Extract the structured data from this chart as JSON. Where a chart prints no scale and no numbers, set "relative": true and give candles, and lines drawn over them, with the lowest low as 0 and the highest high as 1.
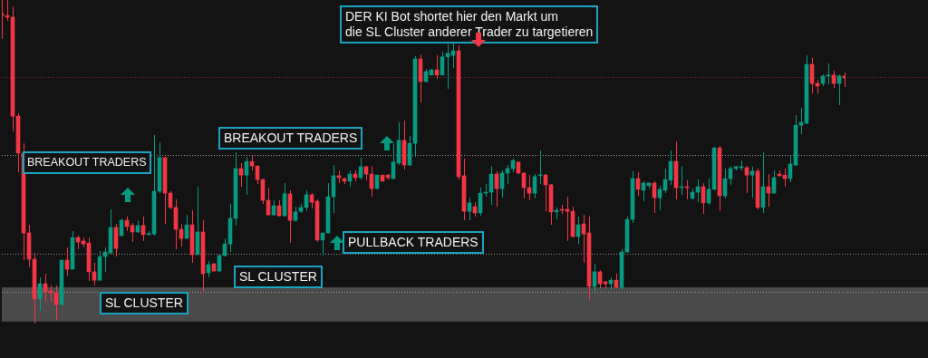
{
  "chart_data": {
    "type": "candlestick",
    "relative": true,
    "colors": [
      "#f23645",
      "#f23645",
      "#f23645",
      "#f23645",
      "#f23645",
      "#f23645",
      "#f23645",
      "#089981",
      "#f23645",
      "#f23645",
      "#f23645",
      "#089981",
      "#f23645",
      "#089981",
      "#f23645",
      "#f23645",
      "#f23645",
      "#f23645",
      "#089981",
      "#089981",
      "#089981",
      "#f23645",
      "#089981",
      "#f23645",
      "#f23645",
      "#089981",
      "#f23645",
      "#089981",
      "#089981",
      "#089981",
      "#f23645",
      "#f23645",
      "#f23645",
      "#f23645",
      "#089981",
      "#f23645",
      "#089981",
      "#f23645",
      "#089981",
      "#f23645",
      "#089981",
      "#089981",
      "#089981",
      "#089981",
      "#f23645",
      "#089981",
      "#f23645",
      "#f23645",
      "#f23645",
      "#f23645",
      "#089981",
      "#f23645",
      "#089981",
      "#f23645",
      "#089981",
      "#089981",
      "#089981",
      "#f23645",
      "#f23645",
      "#089981",
      "#089981",
      "#089981",
      "#f23645",
      "#f23645",
      "#089981",
      "#f23645",
      "#089981",
      "#f23645",
      "#f23645",
      "#089981",
      "#f23645",
      "#f23645",
      "#089981",
      "#089981",
      "#f23645",
      "#089981",
      "#089981",
      "#f23645",
      "#089981",
      "#089981",
      "#f23645",
      "#089981",
      "#089981",
      "#089981",
      "#f23645",
      "#f23645",
      "#089981",
      "#f23645",
      "#089981",
      "#089981",
      "#089981",
      "#f23645",
      "#089981",
      "#089981",
      "#089981",
      "#f23645",
      "#f23645",
      "#f23645",
      "#089981",
      "#089981",
      "#f23645",
      "#f23645",
      "#089981",
      "#f23645",
      "#f23645",
      "#f23645",
      "#089981",
      "#f23645",
      "#f23645",
      "#089981",
      "#f23645",
      "#f23645",
      "#089981",
      "#f23645",
      "#089981",
      "#089981",
      "#089981",
      "#f23645",
      "#089981",
      "#089981",
      "#f23645",
      "#089981",
      "#089981",
      "#089981",
      "#f23645",
      "#089981",
      "#f23645",
      "#089981",
      "#089981",
      "#f23645",
      "#089981",
      "#089981",
      "#f23645",
      "#089981",
      "#089981",
      "#089981",
      "#089981",
      "#f23645",
      "#089981",
      "#f23645",
      "#089981",
      "#f23645",
      "#089981",
      "#f23645",
      "#f23645",
      "#089981",
      "#089981",
      "#089981",
      "#089981",
      "#f23645",
      "#f23645",
      "#089981",
      "#089981",
      "#f23645",
      "#089981",
      "#f23645"
    ],
    "categories": [
      null,
      null,
      null,
      null,
      null,
      null,
      null,
      null,
      null,
      null,
      null,
      null,
      null,
      null,
      null,
      null,
      null,
      null,
      null,
      null,
      null,
      null,
      null,
      null,
      null,
      null,
      null,
      null,
      null,
      null,
      null,
      null,
      null,
      null,
      null,
      null,
      null,
      null,
      null,
      null,
      null,
      null,
      null,
      null,
      null,
      null,
      null,
      null,
      null,
      null,
      null,
      null,
      null,
      null,
      null,
      null,
      null,
      null,
      null,
      null,
      null,
      null,
      null,
      null,
      null,
      null,
      null,
      null,
      null,
      null,
      null,
      null,
      null,
      null,
      null,
      null,
      null,
      null,
      null,
      null,
      null,
      null,
      null,
      null,
      null,
      null,
      null,
      null,
      null,
      null,
      null,
      null,
      null,
      null,
      null,
      null,
      null,
      null,
      null,
      null,
      null,
      null,
      null,
      null,
      null,
      null,
      null,
      null,
      null,
      null,
      null,
      null,
      null,
      null,
      null,
      null,
      null,
      null,
      null,
      null,
      null,
      null,
      null,
      null,
      null,
      null,
      null,
      null,
      null,
      null,
      null,
      null,
      null,
      null,
      null,
      null,
      null,
      null,
      null,
      null,
      null,
      null,
      null,
      null,
      null,
      null,
      null,
      null,
      null,
      null,
      null,
      null,
      null,
      null,
      null,
      null
    ],
    "ohlc": [
      [
        0.958,
        1,
        0.88,
        0.952
      ],
      [
        0.952,
        1,
        0.936,
        0.947
      ],
      [
        0.947,
        0.98,
        0.594,
        0.641
      ],
      [
        0.641,
        0.65,
        0.468,
        0.527
      ],
      [
        0.527,
        0.557,
        0.196,
        0.28
      ],
      [
        0.28,
        0.305,
        0.174,
        0.199
      ],
      [
        0.199,
        0.218,
        0,
        0.076
      ],
      [
        0.076,
        0.143,
        0.039,
        0.123
      ],
      [
        0.123,
        0.154,
        0.067,
        0.098
      ],
      [
        0.101,
        0.118,
        0.067,
        0.095
      ],
      [
        0.095,
        0.118,
        0.011,
        0.059
      ],
      [
        0.059,
        0.196,
        0.056,
        0.196
      ],
      [
        0.196,
        0.235,
        0.148,
        0.168
      ],
      [
        0.168,
        0.286,
        0.168,
        0.266
      ],
      [
        0.266,
        0.272,
        0.23,
        0.252
      ],
      [
        0.255,
        0.266,
        0.235,
        0.246
      ],
      [
        0.249,
        0.266,
        0.132,
        0.16
      ],
      [
        0.16,
        0.188,
        0.118,
        0.134
      ],
      [
        0.134,
        0.224,
        0.134,
        0.207
      ],
      [
        0.207,
        0.235,
        0.16,
        0.221
      ],
      [
        0.218,
        0.353,
        0.218,
        0.297
      ],
      [
        0.297,
        0.308,
        0.207,
        0.232
      ],
      [
        0.272,
        0.325,
        0.269,
        0.319
      ],
      [
        0.319,
        0.331,
        0.286,
        0.3
      ],
      [
        0.303,
        0.311,
        0.252,
        0.283
      ],
      [
        0.283,
        0.319,
        0.28,
        0.303
      ],
      [
        0.303,
        0.331,
        0.255,
        0.275
      ],
      [
        0.275,
        0.286,
        0.272,
        0.277
      ],
      [
        0.277,
        0.583,
        0.272,
        0.409
      ],
      [
        0.409,
        0.56,
        0.403,
        0.513
      ],
      [
        0.513,
        0.513,
        0.308,
        0.403
      ],
      [
        0.403,
        0.409,
        0.353,
        0.359
      ],
      [
        0.359,
        0.384,
        0.23,
        0.291
      ],
      [
        0.291,
        0.308,
        0.238,
        0.263
      ],
      [
        0.263,
        0.336,
        0.263,
        0.305
      ],
      [
        0.305,
        0.35,
        0.188,
        0.213
      ],
      [
        0.213,
        0.423,
        0.213,
        0.283
      ],
      [
        0.283,
        0.319,
        0.095,
        0.154
      ],
      [
        0.157,
        0.193,
        0.143,
        0.182
      ],
      [
        0.185,
        0.185,
        0.162,
        0.162
      ],
      [
        0.162,
        0.216,
        0.162,
        0.21
      ],
      [
        0.21,
        0.263,
        0.207,
        0.246
      ],
      [
        0.246,
        0.37,
        0.221,
        0.325
      ],
      [
        0.325,
        0.529,
        0.303,
        0.479
      ],
      [
        0.479,
        0.496,
        0.423,
        0.459
      ],
      [
        0.459,
        0.515,
        0.398,
        0.501
      ],
      [
        0.501,
        0.518,
        0.473,
        0.487
      ],
      [
        0.487,
        0.487,
        0.431,
        0.445
      ],
      [
        0.445,
        0.448,
        0.37,
        0.381
      ],
      [
        0.381,
        0.42,
        0.336,
        0.336
      ],
      [
        0.336,
        0.381,
        0.333,
        0.364
      ],
      [
        0.364,
        0.381,
        0.331,
        0.333
      ],
      [
        0.333,
        0.434,
        0.331,
        0.401
      ],
      [
        0.401,
        0.412,
        0.249,
        0.319
      ],
      [
        0.319,
        0.361,
        0.314,
        0.345
      ],
      [
        0.347,
        0.37,
        0.342,
        0.359
      ],
      [
        0.359,
        0.412,
        0.347,
        0.398
      ],
      [
        0.398,
        0.403,
        0.356,
        0.375
      ],
      [
        0.378,
        0.384,
        0.252,
        0.258
      ],
      [
        0.258,
        0.28,
        0.21,
        0.28
      ],
      [
        0.28,
        0.434,
        0.28,
        0.392
      ],
      [
        0.392,
        0.49,
        0.342,
        0.457
      ],
      [
        0.457,
        0.473,
        0.434,
        0.451
      ],
      [
        0.448,
        0.451,
        0.431,
        0.44
      ],
      [
        0.44,
        0.473,
        0.423,
        0.462
      ],
      [
        0.462,
        0.473,
        0.44,
        0.451
      ],
      [
        0.451,
        0.513,
        0.445,
        0.485
      ],
      [
        0.485,
        0.487,
        0.443,
        0.462
      ],
      [
        0.462,
        0.487,
        0.392,
        0.417
      ],
      [
        0.417,
        0.459,
        0.415,
        0.459
      ],
      [
        0.459,
        0.459,
        0.44,
        0.44
      ],
      [
        0.459,
        0.462,
        0.445,
        0.451
      ],
      [
        0.448,
        0.555,
        0.448,
        0.499
      ],
      [
        0.496,
        0.622,
        0.49,
        0.566
      ],
      [
        0.566,
        0.627,
        0.476,
        0.49
      ],
      [
        0.49,
        0.58,
        0.487,
        0.557
      ],
      [
        0.557,
        0.826,
        0.515,
        0.818
      ],
      [
        0.818,
        0.832,
        0.683,
        0.748
      ],
      [
        0.748,
        0.787,
        0.745,
        0.779
      ],
      [
        0.768,
        0.787,
        0.768,
        0.784
      ],
      [
        0.784,
        0.829,
        0.756,
        0.768
      ],
      [
        0.768,
        0.84,
        0.768,
        0.824
      ],
      [
        0.824,
        0.863,
        0.725,
        0.835
      ],
      [
        0.829,
        0.868,
        0.79,
        0.843
      ],
      [
        0.843,
        0.86,
        0.445,
        0.454
      ],
      [
        0.457,
        0.51,
        0.319,
        0.347
      ],
      [
        0.347,
        0.389,
        0.319,
        0.373
      ],
      [
        0.361,
        0.375,
        0.331,
        0.342
      ],
      [
        0.342,
        0.42,
        0.333,
        0.403
      ],
      [
        0.403,
        0.431,
        0.392,
        0.406
      ],
      [
        0.406,
        0.487,
        0.367,
        0.462
      ],
      [
        0.462,
        0.471,
        0.361,
        0.417
      ],
      [
        0.417,
        0.473,
        0.389,
        0.465
      ],
      [
        0.465,
        0.49,
        0.431,
        0.479
      ],
      [
        0.479,
        0.51,
        0.468,
        0.504
      ],
      [
        0.499,
        0.501,
        0.462,
        0.465
      ],
      [
        0.465,
        0.468,
        0.387,
        0.42
      ],
      [
        0.42,
        0.459,
        0.381,
        0.403
      ],
      [
        0.403,
        0.462,
        0.387,
        0.454
      ],
      [
        0.457,
        0.535,
        0.431,
        0.459
      ],
      [
        0.459,
        0.462,
        0.347,
        0.429
      ],
      [
        0.429,
        0.431,
        0.305,
        0.345
      ],
      [
        0.345,
        0.359,
        0.322,
        0.35
      ],
      [
        0.353,
        0.367,
        0.339,
        0.35
      ],
      [
        0.353,
        0.392,
        0.255,
        0.347
      ],
      [
        0.347,
        0.361,
        0.266,
        0.269
      ],
      [
        0.269,
        0.331,
        0.246,
        0.305
      ],
      [
        0.308,
        0.336,
        0.188,
        0.277
      ],
      [
        0.28,
        0.331,
        0.073,
        0.115
      ],
      [
        0.115,
        0.185,
        0.098,
        0.16
      ],
      [
        0.16,
        0.165,
        0.109,
        0.123
      ],
      [
        0.129,
        0.132,
        0.109,
        0.123
      ],
      [
        0.123,
        0.143,
        0.106,
        0.134
      ],
      [
        0.134,
        0.154,
        0.109,
        0.112
      ],
      [
        0.112,
        0.23,
        0.104,
        0.221
      ],
      [
        0.221,
        0.331,
        0.221,
        0.322
      ],
      [
        0.322,
        0.471,
        0.311,
        0.448
      ],
      [
        0.448,
        0.468,
        0.395,
        0.415
      ],
      [
        0.412,
        0.44,
        0.378,
        0.434
      ],
      [
        0.426,
        0.437,
        0.417,
        0.434
      ],
      [
        0.434,
        0.44,
        0.342,
        0.389
      ],
      [
        0.389,
        0.426,
        0.35,
        0.415
      ],
      [
        0.412,
        0.479,
        0.403,
        0.445
      ],
      [
        0.443,
        0.535,
        0.429,
        0.501
      ],
      [
        0.501,
        0.563,
        0.384,
        0.42
      ],
      [
        0.42,
        0.487,
        0.398,
        0.423
      ],
      [
        0.423,
        0.443,
        0.384,
        0.42
      ],
      [
        0.387,
        0.417,
        0.384,
        0.406
      ],
      [
        0.406,
        0.445,
        0.375,
        0.423
      ],
      [
        0.423,
        0.434,
        0.339,
        0.373
      ],
      [
        0.373,
        0.448,
        0.367,
        0.415
      ],
      [
        0.415,
        0.546,
        0.412,
        0.543
      ],
      [
        0.543,
        0.549,
        0.347,
        0.395
      ],
      [
        0.395,
        0.479,
        0.387,
        0.448
      ],
      [
        0.448,
        0.487,
        0.429,
        0.479
      ],
      [
        0.479,
        0.487,
        0.473,
        0.485
      ],
      [
        0.482,
        0.504,
        0.473,
        0.485
      ],
      [
        0.482,
        0.487,
        0.403,
        0.459
      ],
      [
        0.459,
        0.485,
        0.389,
        0.471
      ],
      [
        0.471,
        0.479,
        0.353,
        0.359
      ],
      [
        0.359,
        0.529,
        0.342,
        0.423
      ],
      [
        0.423,
        0.462,
        0.361,
        0.403
      ],
      [
        0.403,
        0.473,
        0.403,
        0.451
      ],
      [
        0.462,
        0.473,
        0.454,
        0.457
      ],
      [
        0.459,
        0.479,
        0.423,
        0.448
      ],
      [
        0.448,
        0.518,
        0.437,
        0.493
      ],
      [
        0.49,
        0.644,
        0.487,
        0.613
      ],
      [
        0.613,
        0.667,
        0.585,
        0.622
      ],
      [
        0.619,
        0.829,
        0.616,
        0.801
      ],
      [
        0.801,
        0.821,
        0.711,
        0.742
      ],
      [
        0.742,
        0.753,
        0.711,
        0.734
      ],
      [
        0.742,
        0.77,
        0.734,
        0.765
      ],
      [
        0.765,
        0.804,
        0.739,
        0.768
      ],
      [
        0.768,
        0.782,
        0.728,
        0.742
      ],
      [
        0.742,
        0.77,
        0.675,
        0.765
      ],
      [
        0.765,
        0.776,
        0.731,
        0.759
      ]
    ],
    "ref_lines": [
      {
        "axis": "y",
        "value": 0.762,
        "color": "#8a2a32",
        "line_style": "dotted"
      },
      {
        "axis": "y",
        "value": 0.521,
        "color": "#9a9a9a",
        "line_style": "dotted"
      },
      {
        "axis": "y",
        "value": 0.216,
        "color": "#9a9a9a",
        "line_style": "dotted"
      },
      {
        "axis": "y",
        "value": 0.098,
        "color": "#9a9a9a",
        "line_style": "dotted"
      }
    ],
    "bands": [
      {
        "axis": "y",
        "from": 0.006,
        "to": 0.112,
        "color": "#4a4a4a"
      }
    ],
    "annotations": [
      "DER KI Bot shortet hier den Markt um\ndie SL Cluster anderer Trader zu targetieren",
      "BREAKOUT TRADERS",
      "BREAKOUT TRADERS",
      "PULLBACK TRADERS",
      "SL CLUSTER",
      "SL CLUSTER"
    ]
  }
}
